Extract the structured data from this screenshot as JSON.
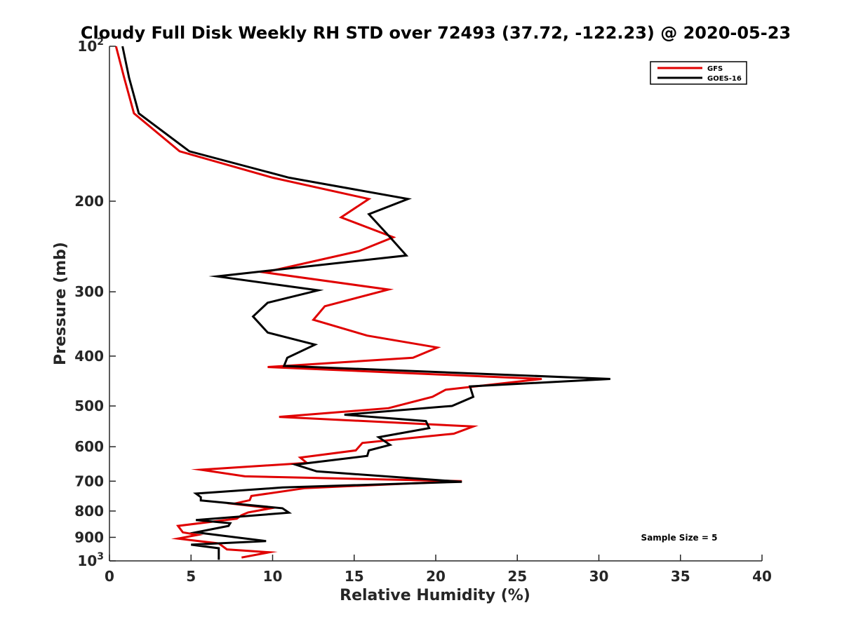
{
  "chart_data": {
    "type": "line",
    "title": "Cloudy Full Disk Weekly RH STD over 72493 (37.72, -122.23) @ 2020-05-23",
    "xlabel": "Relative Humidity (%)",
    "ylabel": "Pressure (mb)",
    "xlim": [
      0,
      40
    ],
    "ylim": [
      100,
      1000
    ],
    "y_scale": "log",
    "y_reversed": true,
    "x_ticks": [
      "0",
      "5",
      "10",
      "15",
      "20",
      "25",
      "30",
      "35",
      "40"
    ],
    "y_ticks": [
      {
        "value": 100,
        "base": "10",
        "exp": "2"
      },
      {
        "value": 200,
        "label": "200"
      },
      {
        "value": 300,
        "label": "300"
      },
      {
        "value": 400,
        "label": "400"
      },
      {
        "value": 500,
        "label": "500"
      },
      {
        "value": 600,
        "label": "600"
      },
      {
        "value": 700,
        "label": "700"
      },
      {
        "value": 800,
        "label": "800"
      },
      {
        "value": 900,
        "label": "900"
      },
      {
        "value": 1000,
        "base": "10",
        "exp": "3"
      }
    ],
    "legend_position": "top-right",
    "annotation": "Sample Size = 5",
    "series": [
      {
        "name": "GFS",
        "color": "#e00000",
        "points": [
          [
            0.4,
            100
          ],
          [
            0.9,
            115
          ],
          [
            1.5,
            135
          ],
          [
            4.3,
            160
          ],
          [
            10,
            180
          ],
          [
            15.9,
            198
          ],
          [
            14.2,
            215
          ],
          [
            17.4,
            235
          ],
          [
            15.3,
            250
          ],
          [
            9.5,
            275
          ],
          [
            17.1,
            297
          ],
          [
            13.2,
            320
          ],
          [
            12.5,
            340
          ],
          [
            15.8,
            365
          ],
          [
            20.1,
            385
          ],
          [
            18.6,
            403
          ],
          [
            9.7,
            420
          ],
          [
            26.5,
            443
          ],
          [
            20.6,
            465
          ],
          [
            19.8,
            480
          ],
          [
            17.1,
            505
          ],
          [
            10.4,
            525
          ],
          [
            22.3,
            548
          ],
          [
            21.1,
            566
          ],
          [
            15.5,
            590
          ],
          [
            15.1,
            610
          ],
          [
            11.7,
            630
          ],
          [
            12.1,
            645
          ],
          [
            5.6,
            665
          ],
          [
            8.3,
            685
          ],
          [
            21.6,
            700
          ],
          [
            12,
            722
          ],
          [
            8.7,
            748
          ],
          [
            8.6,
            762
          ],
          [
            7.6,
            775
          ],
          [
            9.9,
            790
          ],
          [
            8.5,
            805
          ],
          [
            8.1,
            815
          ],
          [
            7.8,
            828
          ],
          [
            4.2,
            855
          ],
          [
            4.5,
            880
          ],
          [
            5.4,
            890
          ],
          [
            4.2,
            905
          ],
          [
            6.7,
            925
          ],
          [
            7.2,
            950
          ],
          [
            9.8,
            962
          ],
          [
            8.1,
            985
          ]
        ]
      },
      {
        "name": "GOES-16",
        "color": "#000000",
        "points": [
          [
            0.8,
            100
          ],
          [
            1.2,
            115
          ],
          [
            1.8,
            135
          ],
          [
            4.9,
            160
          ],
          [
            11,
            180
          ],
          [
            18.3,
            198
          ],
          [
            15.9,
            212
          ],
          [
            17.2,
            235
          ],
          [
            18.2,
            255
          ],
          [
            6.6,
            280
          ],
          [
            12.8,
            298
          ],
          [
            9.7,
            315
          ],
          [
            8.8,
            335
          ],
          [
            9.7,
            360
          ],
          [
            12.6,
            380
          ],
          [
            10.9,
            403
          ],
          [
            10.7,
            418
          ],
          [
            30.7,
            443
          ],
          [
            22.1,
            458
          ],
          [
            22.3,
            480
          ],
          [
            21,
            500
          ],
          [
            14.4,
            520
          ],
          [
            19.4,
            535
          ],
          [
            19.6,
            552
          ],
          [
            16.5,
            575
          ],
          [
            17.2,
            595
          ],
          [
            15.9,
            610
          ],
          [
            15.8,
            625
          ],
          [
            11.4,
            650
          ],
          [
            12.7,
            670
          ],
          [
            21.6,
            702
          ],
          [
            10.6,
            720
          ],
          [
            5.3,
            740
          ],
          [
            5.6,
            752
          ],
          [
            5.6,
            763
          ],
          [
            10.6,
            790
          ],
          [
            11,
            806
          ],
          [
            5.3,
            833
          ],
          [
            7.4,
            845
          ],
          [
            7.3,
            855
          ],
          [
            5.3,
            880
          ],
          [
            9.6,
            915
          ],
          [
            5,
            930
          ],
          [
            6.7,
            945
          ],
          [
            6.7,
            995
          ]
        ]
      }
    ]
  }
}
